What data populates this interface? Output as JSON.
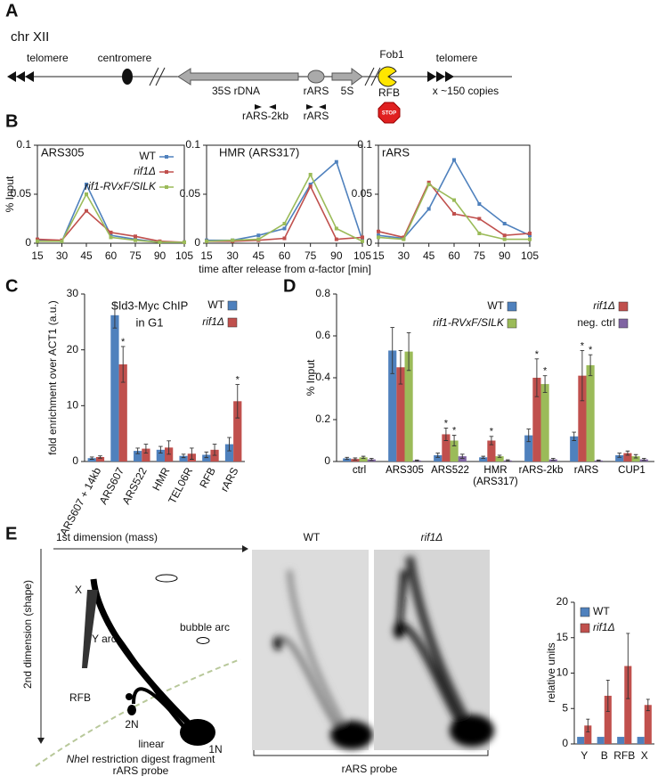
{
  "panel_labels": [
    "A",
    "B",
    "C",
    "D",
    "E"
  ],
  "diagram_a": {
    "chromosome": "chr XII",
    "left_telomere": "telomere",
    "centromere": "centromere",
    "rdna": "35S rDNA",
    "rars": "rARS",
    "five_s": "5S",
    "fob1": "Fob1",
    "rfb": "RFB",
    "stop": "STOP",
    "right_telomere": "telomere",
    "copies": "x ~150 copies",
    "primer_1": "rARS-2kb",
    "primer_2": "rARS"
  },
  "schematic_e": {
    "first_dimension": "1st dimension (mass)",
    "second_dimension": "2nd dimension (shape)",
    "x": "X",
    "y_arc": "Y arc",
    "bubble_arc": "bubble arc",
    "rfb": "RFB",
    "two_n": "2N",
    "one_n": "1N",
    "linear": "linear",
    "enzyme": "Nhe",
    "digest": "I restriction digest fragment",
    "probe": "rARS probe"
  },
  "gel_e": {
    "wt": "WT",
    "rif1": "rif1Δ",
    "probe": "rARS probe"
  },
  "chart_data": [
    {
      "type": "line",
      "title": "ARS305",
      "ylabel": "% Input",
      "legend": "upper right",
      "x": [
        15,
        30,
        45,
        60,
        75,
        90,
        105
      ],
      "xlim": [
        15,
        105
      ],
      "xticks": [
        15,
        30,
        45,
        60,
        75,
        90,
        105
      ],
      "ylim": [
        0,
        0.1
      ],
      "yticks": [
        0,
        0.05,
        0.1
      ],
      "series": [
        {
          "name": "WT",
          "color": "#4f81bd",
          "values": [
            0.003,
            0.002,
            0.06,
            0.008,
            0.004,
            0.001,
            0.001
          ]
        },
        {
          "name": "rif1Δ",
          "font_style": "italic",
          "color": "#c0504d",
          "values": [
            0.004,
            0.003,
            0.033,
            0.011,
            0.007,
            0.002,
            0.001
          ]
        },
        {
          "name": "rif1-RVxF/SILK",
          "font_style": "italic",
          "color": "#9bbb59",
          "values": [
            0.002,
            0.002,
            0.05,
            0.006,
            0.003,
            0.001,
            0.001
          ]
        }
      ]
    },
    {
      "type": "line",
      "title": "HMR (ARS317)",
      "xlabel": "time after release from α-factor [min]",
      "x": [
        15,
        30,
        45,
        60,
        75,
        90,
        105
      ],
      "xlim": [
        15,
        105
      ],
      "xticks": [
        15,
        30,
        45,
        60,
        75,
        90,
        105
      ],
      "ylim": [
        0,
        0.1
      ],
      "yticks": [
        0,
        0.05,
        0.1
      ],
      "series": [
        {
          "color": "#4f81bd",
          "values": [
            0.003,
            0.003,
            0.008,
            0.015,
            0.06,
            0.083,
            0.003
          ]
        },
        {
          "color": "#c0504d",
          "values": [
            0.002,
            0.002,
            0.003,
            0.005,
            0.058,
            0.004,
            0.006
          ]
        },
        {
          "color": "#9bbb59",
          "values": [
            0.002,
            0.003,
            0.004,
            0.02,
            0.07,
            0.015,
            0.002
          ]
        }
      ]
    },
    {
      "type": "line",
      "title": "rARS",
      "x": [
        15,
        30,
        45,
        60,
        75,
        90,
        105
      ],
      "xlim": [
        15,
        105
      ],
      "xticks": [
        15,
        30,
        45,
        60,
        75,
        90,
        105
      ],
      "ylim": [
        0,
        0.1
      ],
      "yticks": [
        0,
        0.05,
        0.1
      ],
      "series": [
        {
          "color": "#4f81bd",
          "values": [
            0.008,
            0.005,
            0.035,
            0.085,
            0.04,
            0.02,
            0.008
          ]
        },
        {
          "color": "#c0504d",
          "values": [
            0.012,
            0.006,
            0.062,
            0.03,
            0.025,
            0.008,
            0.01
          ]
        },
        {
          "color": "#9bbb59",
          "values": [
            0.006,
            0.004,
            0.06,
            0.044,
            0.01,
            0.004,
            0.004
          ]
        }
      ]
    },
    {
      "type": "bar",
      "title": [
        "Sld3-Myc ChIP",
        "in G1"
      ],
      "ylabel": "fold enrichment over ACT1 (a.u.)",
      "legend": "upper right",
      "categories": [
        "ARS607 + 14kb",
        "ARS607",
        "ARS522",
        "HMR",
        "TEL06R",
        "RFB",
        "rARS"
      ],
      "ylim": [
        0,
        30
      ],
      "yticks": [
        0,
        10,
        20,
        30
      ],
      "series": [
        {
          "name": "WT",
          "color": "#4f81bd",
          "values": [
            0.6,
            26.2,
            1.9,
            2.1,
            1.0,
            1.2,
            3.1
          ],
          "errors": [
            0.2,
            2.3,
            0.5,
            0.6,
            0.3,
            0.5,
            1.2
          ]
        },
        {
          "name": "rif1Δ",
          "font_style": "italic",
          "color": "#c0504d",
          "values": [
            0.8,
            17.4,
            2.3,
            2.5,
            1.4,
            2.1,
            10.8
          ],
          "errors": [
            0.2,
            3.2,
            0.8,
            1.2,
            1.0,
            1.0,
            3.0
          ],
          "significance": [
            null,
            "*",
            null,
            null,
            null,
            null,
            "*"
          ]
        }
      ]
    },
    {
      "type": "bar",
      "ylabel": "% Input",
      "legend": "top",
      "categories": [
        "ctrl",
        "ARS305",
        "ARS522",
        "HMR (ARS317)",
        "rARS-2kb",
        "rARS",
        "CUP1"
      ],
      "ylim": [
        0,
        0.8
      ],
      "yticks": [
        0,
        0.2,
        0.4,
        0.6,
        0.8
      ],
      "series": [
        {
          "name": "WT",
          "color": "#4f81bd",
          "values": [
            0.015,
            0.53,
            0.03,
            0.02,
            0.125,
            0.12,
            0.03
          ],
          "errors": [
            0.005,
            0.11,
            0.01,
            0.005,
            0.03,
            0.02,
            0.01
          ]
        },
        {
          "name": "rif1Δ",
          "font_style": "italic",
          "color": "#c0504d",
          "values": [
            0.012,
            0.45,
            0.13,
            0.1,
            0.4,
            0.41,
            0.04
          ],
          "errors": [
            0.005,
            0.08,
            0.03,
            0.02,
            0.09,
            0.12,
            0.01
          ],
          "significance": [
            null,
            null,
            "*",
            "*",
            "*",
            "*",
            null
          ]
        },
        {
          "name": "rif1-RVxF/SILK",
          "font_style": "italic",
          "color": "#9bbb59",
          "values": [
            0.02,
            0.525,
            0.1,
            0.025,
            0.37,
            0.46,
            0.025
          ],
          "errors": [
            0.005,
            0.09,
            0.025,
            0.005,
            0.04,
            0.05,
            0.008
          ],
          "significance": [
            null,
            null,
            "*",
            null,
            "*",
            "*",
            null
          ]
        },
        {
          "name": "neg. ctrl",
          "color": "#8064a2",
          "values": [
            0.01,
            0.005,
            0.025,
            0.005,
            0.01,
            0.005,
            0.01
          ],
          "errors": [
            0.005,
            0.002,
            0.01,
            0.003,
            0.005,
            0.002,
            0.005
          ]
        }
      ]
    },
    {
      "type": "bar",
      "ylabel": "relative units",
      "legend": "upper left",
      "categories": [
        "Y",
        "B",
        "RFB",
        "X"
      ],
      "ylim": [
        0,
        20
      ],
      "yticks": [
        0,
        5,
        10,
        15,
        20
      ],
      "series": [
        {
          "name": "WT",
          "color": "#4f81bd",
          "values": [
            1,
            1,
            1,
            1
          ]
        },
        {
          "name": "rif1Δ",
          "font_style": "italic",
          "color": "#c0504d",
          "values": [
            2.6,
            6.8,
            11,
            5.5
          ],
          "errors": [
            0.9,
            2.2,
            4.6,
            0.8
          ]
        }
      ]
    }
  ]
}
